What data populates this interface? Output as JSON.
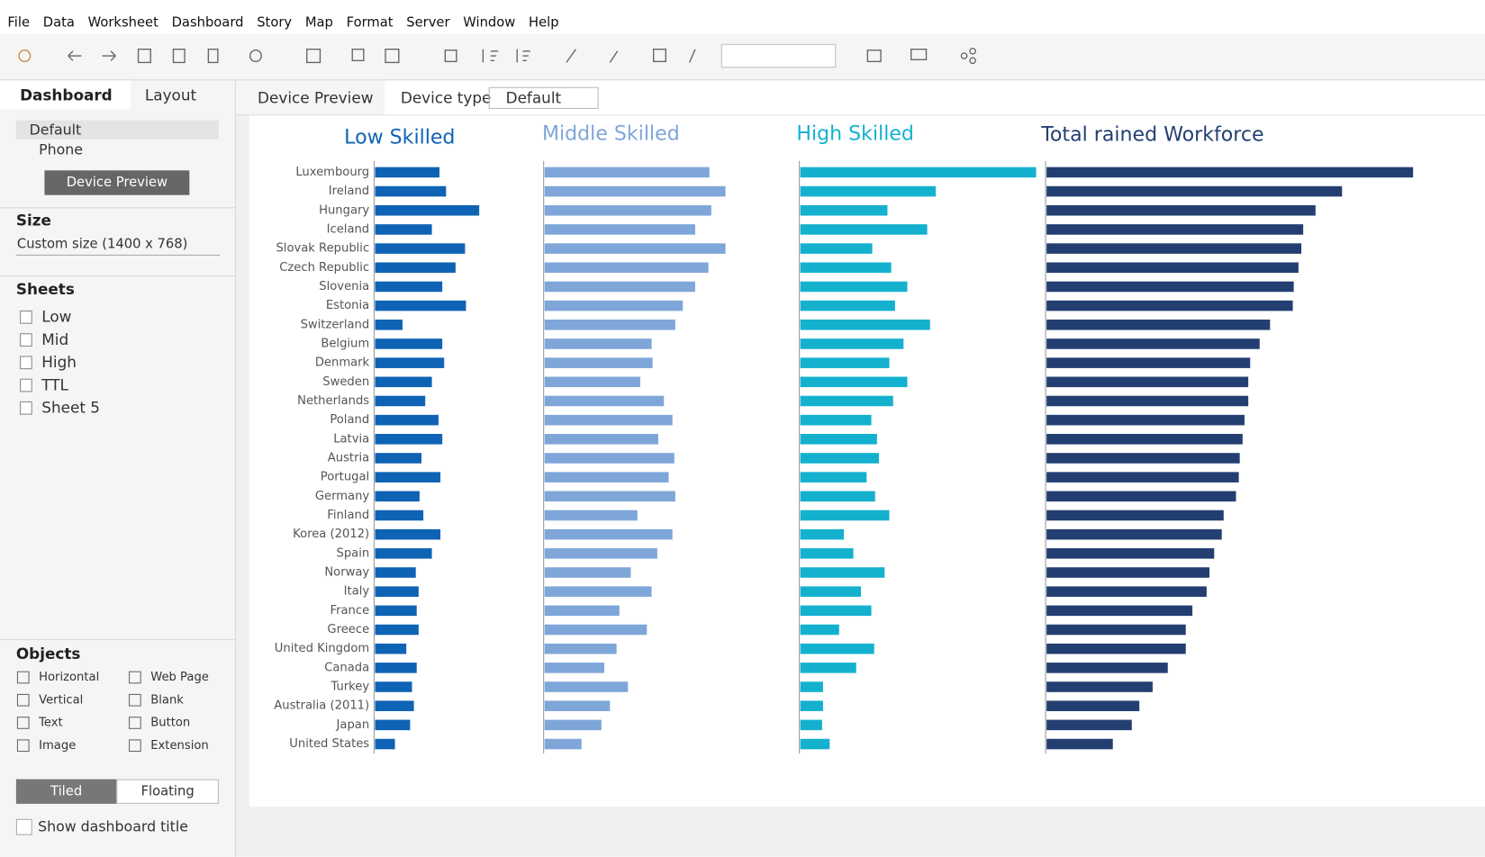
{
  "menu": [
    "File",
    "Data",
    "Worksheet",
    "Dashboard",
    "Story",
    "Map",
    "Format",
    "Server",
    "Window",
    "Help"
  ],
  "sidebar": {
    "tabs": [
      "Dashboard",
      "Layout"
    ],
    "devices": [
      "Default",
      "Phone"
    ],
    "device_preview_button": "Device Preview",
    "size_title": "Size",
    "size_value": "Custom size (1400 x 768)",
    "sheets_title": "Sheets",
    "sheets": [
      "Low",
      "Mid",
      "High",
      "TTL",
      "Sheet 5"
    ],
    "objects_title": "Objects",
    "objects": [
      "Horizontal",
      "Web Page",
      "Vertical",
      "Blank",
      "Text",
      "Button",
      "Image",
      "Extension"
    ],
    "layout_modes": [
      "Tiled",
      "Floating"
    ],
    "show_title": "Show dashboard title"
  },
  "device_bar": {
    "preview": "Device Preview",
    "type_label": "Device type",
    "type_value": "Default"
  },
  "chart_data": [
    {
      "type": "bar",
      "title": "Low Skilled",
      "color": "#0f63b5",
      "categories": [
        "Luxembourg",
        "Ireland",
        "Hungary",
        "Iceland",
        "Slovak Republic",
        "Czech Republic",
        "Slovenia",
        "Estonia",
        "Switzerland",
        "Belgium",
        "Denmark",
        "Sweden",
        "Netherlands",
        "Poland",
        "Latvia",
        "Austria",
        "Portugal",
        "Germany",
        "Finland",
        "Korea (2012)",
        "Spain",
        "Norway",
        "Italy",
        "France",
        "Greece",
        "United Kingdom",
        "Canada",
        "Turkey",
        "Australia (2011)",
        "Japan",
        "United States"
      ],
      "values": [
        68,
        75,
        110,
        60,
        95,
        85,
        71,
        96,
        29,
        71,
        73,
        60,
        53,
        67,
        71,
        49,
        69,
        47,
        51,
        69,
        60,
        43,
        46,
        44,
        46,
        33,
        44,
        39,
        41,
        37,
        21
      ]
    },
    {
      "type": "bar",
      "title": "Middle Skilled",
      "color": "#7fa6d9",
      "values": [
        174,
        191,
        176,
        159,
        191,
        173,
        159,
        146,
        138,
        113,
        114,
        101,
        126,
        135,
        120,
        137,
        131,
        138,
        98,
        135,
        119,
        91,
        113,
        79,
        108,
        76,
        63,
        88,
        69,
        60,
        39
      ]
    },
    {
      "type": "bar",
      "title": "High Skilled",
      "color": "#14b1cf",
      "values": [
        249,
        143,
        92,
        134,
        76,
        96,
        113,
        100,
        137,
        109,
        94,
        113,
        98,
        75,
        81,
        83,
        70,
        79,
        94,
        46,
        56,
        89,
        64,
        75,
        41,
        78,
        59,
        24,
        24,
        23,
        31
      ]
    },
    {
      "type": "bar",
      "title": "Total rained Workforce",
      "color": "#233f72",
      "values": [
        387,
        312,
        284,
        271,
        269,
        266,
        261,
        260,
        236,
        225,
        215,
        213,
        213,
        209,
        207,
        204,
        203,
        200,
        187,
        185,
        177,
        172,
        169,
        154,
        147,
        147,
        128,
        112,
        98,
        90,
        70
      ]
    }
  ]
}
